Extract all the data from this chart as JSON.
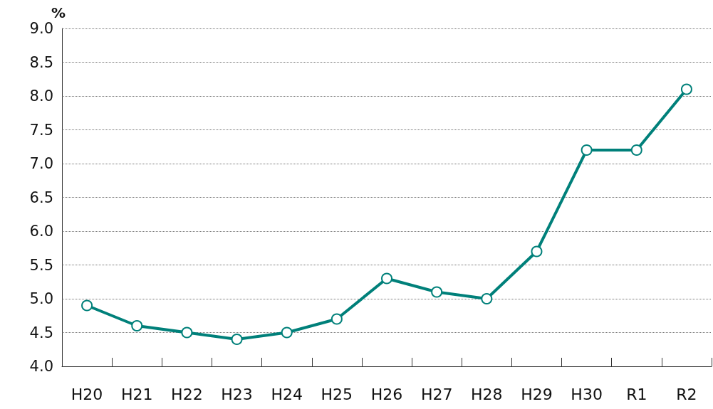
{
  "chart_data": {
    "type": "line",
    "ylabel": "%",
    "categories": [
      "H20",
      "H21",
      "H22",
      "H23",
      "H24",
      "H25",
      "H26",
      "H27",
      "H28",
      "H29",
      "H30",
      "R1",
      "R2"
    ],
    "series": [
      {
        "color": "#00807a",
        "values": [
          4.9,
          4.6,
          4.5,
          4.4,
          4.5,
          4.7,
          5.3,
          5.1,
          5.0,
          5.7,
          7.2,
          7.2,
          8.1
        ]
      }
    ],
    "ylim": [
      4.0,
      9.0
    ],
    "yticks": [
      {
        "value": 4,
        "label": "4.0"
      },
      {
        "value": 4.5,
        "label": "4.5"
      },
      {
        "value": 5,
        "label": "5.0"
      },
      {
        "value": 5.5,
        "label": "5.5"
      },
      {
        "value": 6,
        "label": "6.0"
      },
      {
        "value": 6.5,
        "label": "6.5"
      },
      {
        "value": 7,
        "label": "7.0"
      },
      {
        "value": 7.5,
        "label": "7.5"
      },
      {
        "value": 8,
        "label": "8.0"
      },
      {
        "value": 8.5,
        "label": "8.5"
      },
      {
        "value": 9,
        "label": "9.0"
      }
    ],
    "grid": "y",
    "marker": "circle",
    "line_style": "solid"
  }
}
